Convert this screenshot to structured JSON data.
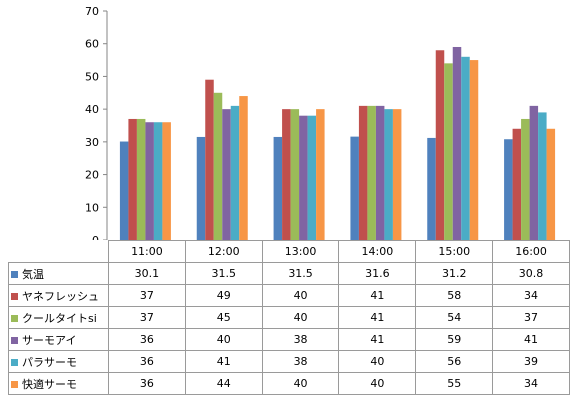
{
  "chart_data": {
    "type": "bar",
    "categories": [
      "11:00",
      "12:00",
      "13:00",
      "14:00",
      "15:00",
      "16:00"
    ],
    "series": [
      {
        "name": "気温",
        "color": "#4f81bd",
        "values": [
          30.1,
          31.5,
          31.5,
          31.6,
          31.2,
          30.8
        ]
      },
      {
        "name": "ヤネフレッシュ",
        "color": "#c0504d",
        "values": [
          37,
          49,
          40,
          41,
          58,
          34
        ]
      },
      {
        "name": "クールタイトsi",
        "color": "#9bbb59",
        "values": [
          37,
          45,
          40,
          41,
          54,
          37
        ]
      },
      {
        "name": "サーモアイ",
        "color": "#8064a2",
        "values": [
          36,
          40,
          38,
          41,
          59,
          41
        ]
      },
      {
        "name": "パラサーモ",
        "color": "#4bacc6",
        "values": [
          36,
          41,
          38,
          40,
          56,
          39
        ]
      },
      {
        "name": "快適サーモ",
        "color": "#f79646",
        "values": [
          36,
          44,
          40,
          40,
          55,
          34
        ]
      }
    ],
    "ylim": [
      0,
      70
    ],
    "yticks": [
      0,
      10,
      20,
      30,
      40,
      50,
      60,
      70
    ],
    "grid": false,
    "legend": "data table"
  }
}
